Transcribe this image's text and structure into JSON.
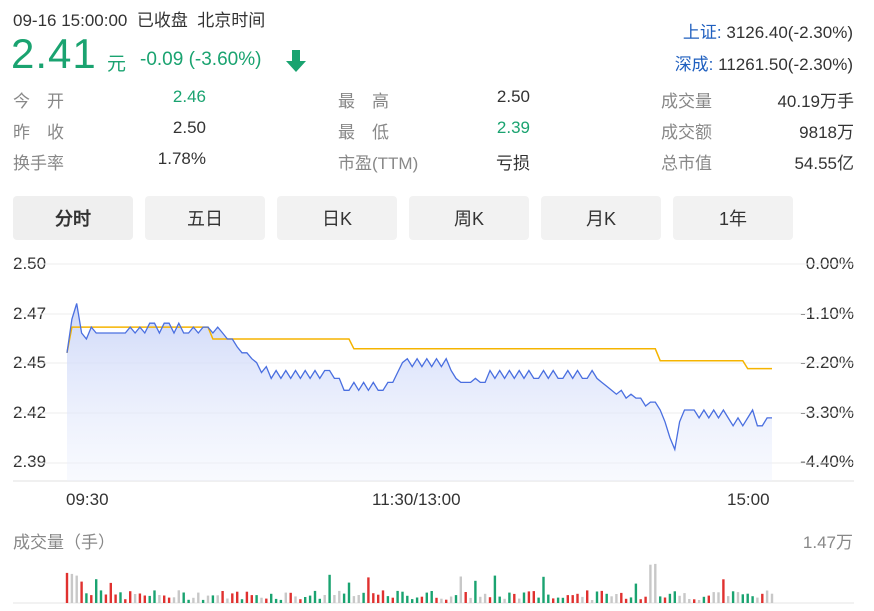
{
  "header": {
    "datetime": "09-16 15:00:00",
    "status": "已收盘",
    "timezone": "北京时间"
  },
  "quote": {
    "price": "2.41",
    "unit": "元",
    "change": "-0.09 (-3.60%)",
    "direction_icon": "arrow-down-icon",
    "color": "#1aa370"
  },
  "indices": [
    {
      "name": "上证:",
      "value": "3126.40(-2.30%)"
    },
    {
      "name": "深成:",
      "value": "11261.50(-2.30%)"
    }
  ],
  "stats": {
    "open": {
      "label": "今　开",
      "value": "2.46"
    },
    "prev_close": {
      "label": "昨　收",
      "value": "2.50"
    },
    "turnover_rate": {
      "label": "换手率",
      "value": "1.78%"
    },
    "high": {
      "label": "最　高",
      "value": "2.50"
    },
    "low": {
      "label": "最　低",
      "value": "2.39"
    },
    "pe": {
      "label": "市盈(TTM)",
      "value": "亏损"
    },
    "volume": {
      "label": "成交量",
      "value": "40.19万手"
    },
    "amount": {
      "label": "成交额",
      "value": "9818万"
    },
    "market_cap": {
      "label": "总市值",
      "value": "54.55亿"
    }
  },
  "tabs": [
    "分时",
    "五日",
    "日K",
    "周K",
    "月K",
    "1年"
  ],
  "active_tab": "分时",
  "chart_data": {
    "type": "line",
    "y_left_ticks": [
      "2.50",
      "2.47",
      "2.45",
      "2.42",
      "2.39"
    ],
    "y_right_ticks": [
      "0.00%",
      "-1.10%",
      "-2.20%",
      "-3.30%",
      "-4.40%"
    ],
    "x_ticks": [
      "09:30",
      "11:30/13:00",
      "15:00"
    ],
    "ylim": [
      2.39,
      2.5
    ],
    "grid": true,
    "series": [
      {
        "color": "#4a6fe0",
        "values": [
          2.455,
          2.472,
          2.48,
          2.465,
          2.462,
          2.468,
          2.465,
          2.465,
          2.465,
          2.465,
          2.465,
          2.465,
          2.465,
          2.468,
          2.465,
          2.468,
          2.465,
          2.47,
          2.47,
          2.465,
          2.47,
          2.47,
          2.465,
          2.47,
          2.465,
          2.465,
          2.468,
          2.465,
          2.468,
          2.468,
          2.465,
          2.468,
          2.465,
          2.462,
          2.462,
          2.458,
          2.455,
          2.455,
          2.452,
          2.45,
          2.445,
          2.448,
          2.442,
          2.446,
          2.442,
          2.446,
          2.442,
          2.446,
          2.442,
          2.446,
          2.442,
          2.446,
          2.442,
          2.446,
          2.446,
          2.442,
          2.442,
          2.436,
          2.436,
          2.44,
          2.436,
          2.44,
          2.436,
          2.44,
          2.436,
          2.436,
          2.44,
          2.44,
          2.445,
          2.45,
          2.452,
          2.448,
          2.452,
          2.448,
          2.452,
          2.448,
          2.452,
          2.448,
          2.452,
          2.446,
          2.442,
          2.44,
          2.44,
          2.44,
          2.442,
          2.44,
          2.44,
          2.446,
          2.442,
          2.446,
          2.442,
          2.446,
          2.442,
          2.446,
          2.442,
          2.446,
          2.442,
          2.442,
          2.446,
          2.442,
          2.446,
          2.442,
          2.442,
          2.446,
          2.442,
          2.446,
          2.442,
          2.442,
          2.446,
          2.442,
          2.44,
          2.438,
          2.436,
          2.434,
          2.436,
          2.432,
          2.434,
          2.432,
          2.432,
          2.428,
          2.43,
          2.43,
          2.426,
          2.42,
          2.412,
          2.406,
          2.42,
          2.426,
          2.426,
          2.426,
          2.422,
          2.426,
          2.422,
          2.426,
          2.422,
          2.426,
          2.422,
          2.418,
          2.422,
          2.418,
          2.422,
          2.426,
          2.418,
          2.418,
          2.422,
          2.422
        ]
      },
      {
        "color": "#f5b400",
        "values": [
          2.455,
          2.468,
          2.468,
          2.468,
          2.468,
          2.468,
          2.468,
          2.468,
          2.468,
          2.468,
          2.468,
          2.468,
          2.468,
          2.468,
          2.468,
          2.468,
          2.468,
          2.468,
          2.468,
          2.468,
          2.468,
          2.468,
          2.468,
          2.468,
          2.468,
          2.468,
          2.468,
          2.468,
          2.468,
          2.468,
          2.462,
          2.462,
          2.462,
          2.462,
          2.462,
          2.462,
          2.462,
          2.462,
          2.462,
          2.462,
          2.462,
          2.462,
          2.462,
          2.462,
          2.462,
          2.462,
          2.462,
          2.462,
          2.462,
          2.462,
          2.462,
          2.462,
          2.462,
          2.462,
          2.462,
          2.462,
          2.462,
          2.462,
          2.462,
          2.457,
          2.457,
          2.457,
          2.457,
          2.457,
          2.457,
          2.457,
          2.457,
          2.457,
          2.457,
          2.457,
          2.457,
          2.457,
          2.457,
          2.457,
          2.457,
          2.457,
          2.457,
          2.457,
          2.457,
          2.457,
          2.457,
          2.457,
          2.457,
          2.457,
          2.457,
          2.457,
          2.457,
          2.457,
          2.457,
          2.457,
          2.457,
          2.457,
          2.457,
          2.457,
          2.457,
          2.457,
          2.457,
          2.457,
          2.457,
          2.457,
          2.457,
          2.457,
          2.457,
          2.457,
          2.457,
          2.457,
          2.457,
          2.457,
          2.457,
          2.457,
          2.457,
          2.457,
          2.457,
          2.457,
          2.457,
          2.457,
          2.457,
          2.457,
          2.457,
          2.457,
          2.457,
          2.457,
          2.451,
          2.451,
          2.451,
          2.451,
          2.451,
          2.451,
          2.451,
          2.451,
          2.451,
          2.451,
          2.451,
          2.451,
          2.451,
          2.451,
          2.451,
          2.451,
          2.451,
          2.451,
          2.447,
          2.447,
          2.447,
          2.447,
          2.447,
          2.447
        ]
      }
    ]
  },
  "volume": {
    "title": "成交量（手）",
    "max_label": "1.47万"
  }
}
